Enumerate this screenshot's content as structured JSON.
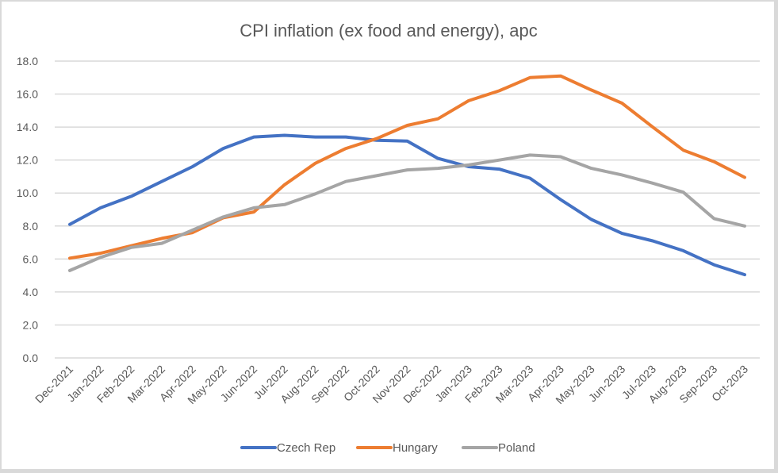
{
  "chart_data": {
    "type": "line",
    "title": "CPI inflation (ex food and energy), apc",
    "xlabel": "",
    "ylabel": "",
    "ylim": [
      0,
      18
    ],
    "yticks": [
      "0.0",
      "2.0",
      "4.0",
      "6.0",
      "8.0",
      "10.0",
      "12.0",
      "14.0",
      "16.0",
      "18.0"
    ],
    "ytick_values": [
      0,
      2,
      4,
      6,
      8,
      10,
      12,
      14,
      16,
      18
    ],
    "grid": true,
    "legend_position": "bottom",
    "categories": [
      "Dec-2021",
      "Jan-2022",
      "Feb-2022",
      "Mar-2022",
      "Apr-2022",
      "May-2022",
      "Jun-2022",
      "Jul-2022",
      "Aug-2022",
      "Sep-2022",
      "Oct-2022",
      "Nov-2022",
      "Dec-2022",
      "Jan-2023",
      "Feb-2023",
      "Mar-2023",
      "Apr-2023",
      "May-2023",
      "Jun-2023",
      "Jul-2023",
      "Aug-2023",
      "Sep-2023",
      "Oct-2023"
    ],
    "series": [
      {
        "name": "Czech Rep",
        "color": "#4472c4",
        "values": [
          8.1,
          9.1,
          9.8,
          10.7,
          11.6,
          12.7,
          13.4,
          13.5,
          13.4,
          13.4,
          13.2,
          13.15,
          12.1,
          11.6,
          11.45,
          10.9,
          9.6,
          8.4,
          7.55,
          7.1,
          6.5,
          5.65,
          5.05
        ]
      },
      {
        "name": "Hungary",
        "color": "#ed7d31",
        "values": [
          6.05,
          6.35,
          6.8,
          7.25,
          7.6,
          8.5,
          8.85,
          10.5,
          11.8,
          12.7,
          13.3,
          14.1,
          14.5,
          15.6,
          16.2,
          17.0,
          17.1,
          16.25,
          15.45,
          14.0,
          12.6,
          11.9,
          10.95
        ]
      },
      {
        "name": "Poland",
        "color": "#a5a5a5",
        "values": [
          5.3,
          6.1,
          6.7,
          6.95,
          7.75,
          8.55,
          9.1,
          9.3,
          9.95,
          10.7,
          11.05,
          11.4,
          11.5,
          11.7,
          12.0,
          12.3,
          12.2,
          11.5,
          11.1,
          10.6,
          10.05,
          8.45,
          8.0
        ]
      }
    ]
  }
}
